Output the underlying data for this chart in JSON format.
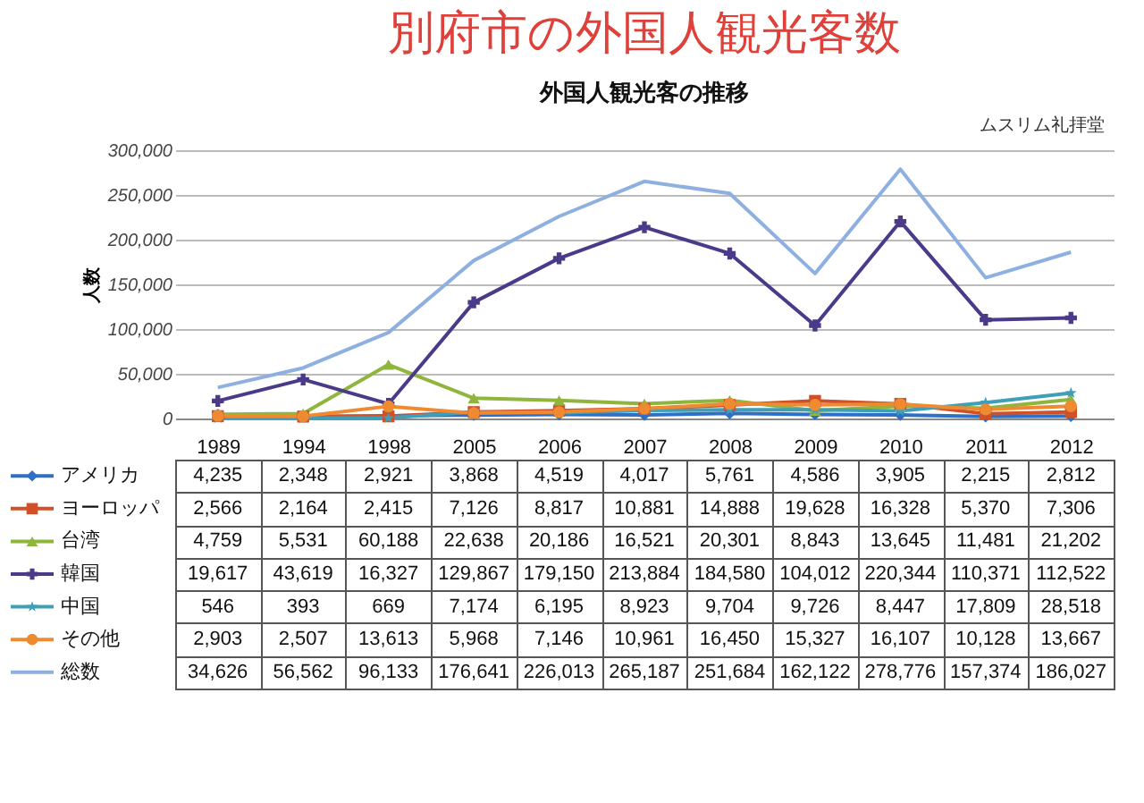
{
  "chart_data": {
    "type": "line",
    "title": "別府市の外国人観光客数",
    "subtitle": "外国人観光客の推移",
    "ylabel": "人数",
    "categories": [
      "1989",
      "1994",
      "1998",
      "2005",
      "2006",
      "2007",
      "2008",
      "2009",
      "2010",
      "2011",
      "2012"
    ],
    "series": [
      {
        "name": "アメリカ",
        "color": "#2f6fc4",
        "marker": "diamond",
        "values": [
          4235,
          2348,
          2921,
          3868,
          4519,
          4017,
          5761,
          4586,
          3905,
          2215,
          2812
        ],
        "value_labels": [
          "4,235",
          "2,348",
          "2,921",
          "3,868",
          "4,519",
          "4,017",
          "5,761",
          "4,586",
          "3,905",
          "2,215",
          "2,812"
        ]
      },
      {
        "name": "ヨーロッパ",
        "color": "#d0502a",
        "marker": "square",
        "values": [
          2566,
          2164,
          2415,
          7126,
          8817,
          10881,
          14888,
          19628,
          16328,
          5370,
          7306
        ],
        "value_labels": [
          "2,566",
          "2,164",
          "2,415",
          "7,126",
          "8,817",
          "10,881",
          "14,888",
          "19,628",
          "16,328",
          "5,370",
          "7,306"
        ]
      },
      {
        "name": "台湾",
        "color": "#8fb53c",
        "marker": "triangle",
        "values": [
          4759,
          5531,
          60188,
          22638,
          20186,
          16521,
          20301,
          8843,
          13645,
          11481,
          21202
        ],
        "value_labels": [
          "4,759",
          "5,531",
          "60,188",
          "22,638",
          "20,186",
          "16,521",
          "20,301",
          "8,843",
          "13,645",
          "11,481",
          "21,202"
        ]
      },
      {
        "name": "韓国",
        "color": "#4b3a8a",
        "marker": "cross",
        "values": [
          19617,
          43619,
          16327,
          129867,
          179150,
          213884,
          184580,
          104012,
          220344,
          110371,
          112522
        ],
        "value_labels": [
          "19,617",
          "43,619",
          "16,327",
          "129,867",
          "179,150",
          "213,884",
          "184,580",
          "104,012",
          "220,344",
          "110,371",
          "112,522"
        ]
      },
      {
        "name": "中国",
        "color": "#3f9fb8",
        "marker": "star",
        "values": [
          546,
          393,
          669,
          7174,
          6195,
          8923,
          9704,
          9726,
          8447,
          17809,
          28518
        ],
        "value_labels": [
          "546",
          "393",
          "669",
          "7,174",
          "6,195",
          "8,923",
          "9,704",
          "9,726",
          "8,447",
          "17,809",
          "28,518"
        ]
      },
      {
        "name": "その他",
        "color": "#f08a30",
        "marker": "circle",
        "values": [
          2903,
          2507,
          13613,
          5968,
          7146,
          10961,
          16450,
          15327,
          16107,
          10128,
          13667
        ],
        "value_labels": [
          "2,903",
          "2,507",
          "13,613",
          "5,968",
          "7,146",
          "10,961",
          "16,450",
          "15,327",
          "16,107",
          "10,128",
          "13,667"
        ]
      },
      {
        "name": "総数",
        "color": "#8eb0e0",
        "marker": "none",
        "values": [
          34626,
          56562,
          96133,
          176641,
          226013,
          265187,
          251684,
          162122,
          278776,
          157374,
          186027
        ],
        "value_labels": [
          "34,626",
          "56,562",
          "96,133",
          "176,641",
          "226,013",
          "265,187",
          "251,684",
          "162,122",
          "278,776",
          "157,374",
          "186,027"
        ]
      }
    ],
    "ylim": [
      0,
      300000
    ],
    "yticks": [
      0,
      {
        "value": 50000,
        "label": "50,000"
      },
      {
        "value": 100000,
        "label": "100,000"
      },
      {
        "value": 150000,
        "label": "150,000"
      },
      {
        "value": 200000,
        "label": "200,000"
      },
      {
        "value": 250000,
        "label": "250,000"
      },
      {
        "value": 300000,
        "label": "300,000"
      }
    ],
    "grid": "y",
    "legend": "bottom",
    "annotations": [
      "ムスリム礼拝堂"
    ]
  }
}
